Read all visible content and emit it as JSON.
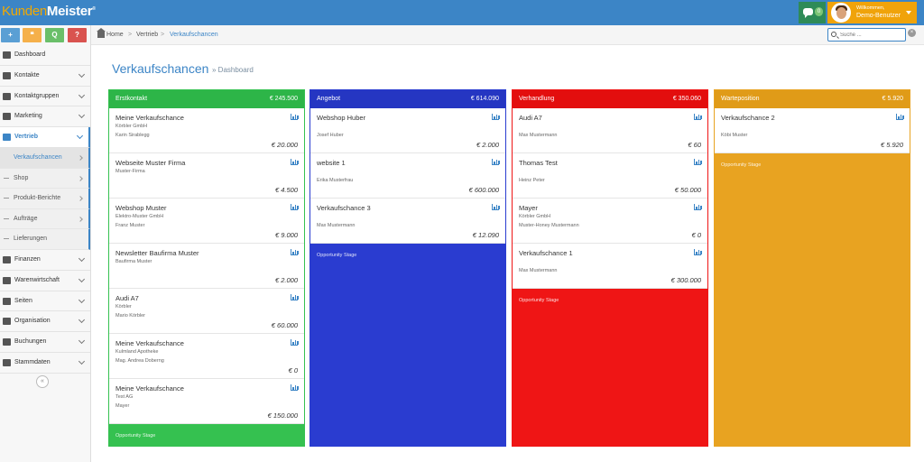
{
  "app": {
    "logo_part1": "Kunden",
    "logo_part2": "Meister",
    "logo_mark": "®"
  },
  "header": {
    "chat_icon": "chat-bubble-icon",
    "chat_count": "0",
    "greeting": "Willkommen,",
    "user_name": "Demo-Benutzer"
  },
  "quick_actions": [
    {
      "label": "+",
      "icon": "plus-icon",
      "color": "#5a9fd4"
    },
    {
      "label": "❝",
      "icon": "chat-icon",
      "color": "#f5b04a"
    },
    {
      "label": "Q",
      "icon": "search-icon",
      "color": "#6abf69"
    },
    {
      "label": "?",
      "icon": "help-icon",
      "color": "#d9534f"
    }
  ],
  "sidebar": {
    "items": [
      {
        "label": "Dashboard",
        "icon": "dashboard-icon"
      },
      {
        "label": "Kontakte",
        "icon": "user-icon"
      },
      {
        "label": "Kontaktgruppen",
        "icon": "users-icon"
      },
      {
        "label": "Marketing",
        "icon": "envelope-icon"
      },
      {
        "label": "Vertrieb",
        "icon": "bar-chart-icon"
      }
    ],
    "sub_items": [
      {
        "label": "Verkaufschancen"
      },
      {
        "label": "Shop"
      },
      {
        "label": "Produkt-Berichte"
      },
      {
        "label": "Aufträge"
      },
      {
        "label": "Lieferungen"
      }
    ],
    "items_after": [
      {
        "label": "Finanzen",
        "icon": "money-icon"
      },
      {
        "label": "Warenwirtschaft",
        "icon": "globe-icon"
      },
      {
        "label": "Seiten",
        "icon": "pages-icon"
      },
      {
        "label": "Organisation",
        "icon": "edit-icon"
      },
      {
        "label": "Buchungen",
        "icon": "bookmark-icon"
      },
      {
        "label": "Stammdaten",
        "icon": "gears-icon"
      }
    ],
    "collapse_label": "«"
  },
  "breadcrumb": {
    "home": "Home",
    "level1": "Vertrieb",
    "level2": "Verkaufschancen",
    "separator": ">"
  },
  "search": {
    "placeholder": "Suche ...",
    "clear_label": "×"
  },
  "page": {
    "title": "Verkaufschancen",
    "subtitle": "» Dashboard"
  },
  "colors": {
    "erstkontakt": "#35c150",
    "angebot": "#2a3cd0",
    "verhandlung": "#ef1515",
    "warteposition": "#e8a321",
    "accent": "#3c85c6"
  },
  "columns": [
    {
      "name": "Erstkontakt",
      "total": "€ 245.500",
      "stage_label": "Opportunity Stage",
      "cards": [
        {
          "title": "Meine Verkaufschance",
          "l1": "Körbler GmbH",
          "l2": "Karin Sirablegg",
          "amount": "€ 20.000"
        },
        {
          "title": "Webseite Muster Firma",
          "l1": "Muster-Firma",
          "l2": "",
          "amount": "€ 4.500"
        },
        {
          "title": "Webshop Muster",
          "l1": "Elektro-Muster GmbH",
          "l2": "Franz Muster",
          "amount": "€ 9.000"
        },
        {
          "title": "Newsletter Baufirma Muster",
          "l1": "Baufirma Muster",
          "l2": "",
          "amount": "€ 2.000"
        },
        {
          "title": "Audi A7",
          "l1": "Körbler",
          "l2": "Mario Körbler",
          "amount": "€ 60.000"
        },
        {
          "title": "Meine Verkaufschance",
          "l1": "Kulmland Apotheke",
          "l2": "Mag. Andrea Doberng",
          "amount": "€ 0"
        },
        {
          "title": "Meine Verkaufschance",
          "l1": "Test AG",
          "l2": "Mayer",
          "amount": "€ 150.000"
        }
      ]
    },
    {
      "name": "Angebot",
      "total": "€ 614.090",
      "stage_label": "Opportunity Stage",
      "cards": [
        {
          "title": "Webshop Huber",
          "l1": "",
          "l2": "Josef Huber",
          "amount": "€ 2.000"
        },
        {
          "title": "website 1",
          "l1": "",
          "l2": "Erika Musterfrau",
          "amount": "€ 600.000"
        },
        {
          "title": "Verkaufschance 3",
          "l1": "",
          "l2": "Max Mustermann",
          "amount": "€ 12.090"
        }
      ]
    },
    {
      "name": "Verhandlung",
      "total": "€ 350.060",
      "stage_label": "Opportunity Stage",
      "cards": [
        {
          "title": "Audi A7",
          "l1": "",
          "l2": "Max Mustermann",
          "amount": "€ 60"
        },
        {
          "title": "Thomas Test",
          "l1": "",
          "l2": "Heinz Peter",
          "amount": "€ 50.000"
        },
        {
          "title": "Mayer",
          "l1": "Körbler GmbH",
          "l2": "Muster-Honey Mustermann",
          "amount": "€ 0"
        },
        {
          "title": "Verkaufschance 1",
          "l1": "",
          "l2": "Max Mustermann",
          "amount": "€ 300.000"
        }
      ]
    },
    {
      "name": "Warteposition",
      "total": "€ 5.920",
      "stage_label": "Opportunity Stage",
      "cards": [
        {
          "title": "Verkaufschance 2",
          "l1": "",
          "l2": "Köbi Muster",
          "amount": "€ 5.920"
        }
      ]
    }
  ]
}
